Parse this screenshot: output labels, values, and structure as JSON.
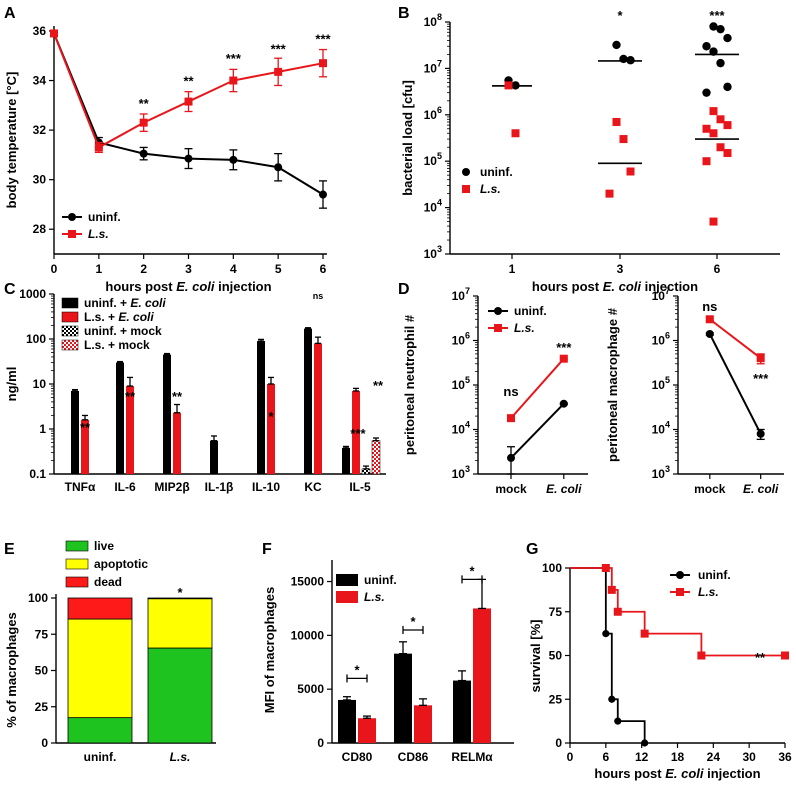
{
  "colors": {
    "uninf": "#000000",
    "ls": "#e8161b",
    "live": "#1fc31f",
    "apoptotic": "#ffff00",
    "dead": "#ff1a1a"
  },
  "chart_data": [
    {
      "panel": "A",
      "type": "line",
      "xlabel_pre": "hours post ",
      "xlabel_italic": "E. coli",
      "xlabel_post": " injection",
      "ylabel": "body temperature [°C]",
      "xlim": [
        0,
        6
      ],
      "ylim": [
        27,
        36.2
      ],
      "xticks": [
        "0",
        "1",
        "2",
        "3",
        "4",
        "5",
        "6"
      ],
      "yticks": [
        28,
        30,
        32,
        34,
        36
      ],
      "x": [
        0,
        1,
        2,
        3,
        4,
        5,
        6
      ],
      "series": [
        {
          "name": "uninf.",
          "key": "uninf",
          "values": [
            35.9,
            31.5,
            31.05,
            30.85,
            30.8,
            30.5,
            29.4
          ],
          "errors": [
            0,
            0.2,
            0.25,
            0.4,
            0.4,
            0.55,
            0.55
          ]
        },
        {
          "name": "L.s.",
          "key": "ls",
          "italic": true,
          "values": [
            35.9,
            31.3,
            32.3,
            33.15,
            34.0,
            34.35,
            34.7
          ],
          "errors": [
            0,
            0.2,
            0.35,
            0.4,
            0.45,
            0.55,
            0.55
          ]
        }
      ],
      "annotations": [
        {
          "x": 2,
          "y": 32.9,
          "text": "**"
        },
        {
          "x": 3,
          "y": 33.8,
          "text": "**"
        },
        {
          "x": 4,
          "y": 34.7,
          "text": "***"
        },
        {
          "x": 5,
          "y": 35.1,
          "text": "***"
        },
        {
          "x": 6,
          "y": 35.5,
          "text": "***"
        }
      ],
      "legend": "bottom-left"
    },
    {
      "panel": "B",
      "type": "scatter",
      "xlabel_pre": "hours post ",
      "xlabel_italic": "E. coli",
      "xlabel_post": " injection",
      "ylabel": "bacterial load [cfu]",
      "log": true,
      "ylim_exp": [
        3,
        8
      ],
      "ytick_exps": [
        3,
        4,
        5,
        6,
        7,
        8
      ],
      "categories": [
        "1",
        "3",
        "6"
      ],
      "series": [
        {
          "name": "uninf.",
          "key": "uninf",
          "points": [
            [
              0,
              5500000.0
            ],
            [
              0,
              4300000.0
            ],
            [
              1,
              32000000.0
            ],
            [
              1,
              16000000.0
            ],
            [
              1,
              15000000.0
            ],
            [
              2,
              80000000.0
            ],
            [
              2,
              70000000.0
            ],
            [
              2,
              45000000.0
            ],
            [
              2,
              30000000.0
            ],
            [
              2,
              23000000.0
            ],
            [
              2,
              13000000.0
            ],
            [
              2,
              4000000.0
            ],
            [
              2,
              3000000.0
            ]
          ]
        },
        {
          "name": "L.s.",
          "key": "ls",
          "italic": true,
          "points": [
            [
              0,
              4300000.0
            ],
            [
              0,
              400000.0
            ],
            [
              1,
              700000.0
            ],
            [
              1,
              300000.0
            ],
            [
              1,
              60000.0
            ],
            [
              1,
              20000.0
            ],
            [
              2,
              1200000.0
            ],
            [
              2,
              800000.0
            ],
            [
              2,
              600000.0
            ],
            [
              2,
              500000.0
            ],
            [
              2,
              400000.0
            ],
            [
              2,
              200000.0
            ],
            [
              2,
              150000.0
            ],
            [
              2,
              100000.0
            ],
            [
              2,
              5000.0
            ]
          ]
        }
      ],
      "lines": [
        {
          "cat": 0,
          "value": 4200000.0
        },
        {
          "cat": 0,
          "value": 4200000.0
        },
        {
          "cat": 1,
          "value": 14500000.0
        },
        {
          "cat": 1,
          "value": 90000.0
        },
        {
          "cat": 2,
          "value": 20000000.0
        },
        {
          "cat": 2,
          "value": 300000.0
        }
      ],
      "annotations": [
        {
          "cat": 1,
          "text": "*"
        },
        {
          "cat": 2,
          "text": "***"
        }
      ],
      "legend": "bottom-left"
    },
    {
      "panel": "C",
      "type": "bar",
      "ylabel": "ng/ml",
      "log": true,
      "ylim_exp": [
        -1,
        3
      ],
      "yticks": [
        "0.1",
        "1",
        "10",
        "100",
        "1000"
      ],
      "categories": [
        "TNFα",
        "IL-6",
        "MIP2β",
        "IL-1β",
        "IL-10",
        "KC",
        "IL-5"
      ],
      "series": [
        {
          "name": "uninf. + ",
          "italic_suffix": "E. coli",
          "key": "uninf",
          "values": [
            7,
            30,
            45,
            0.55,
            90,
            170,
            0.38
          ],
          "errors": [
            0.5,
            1.5,
            2.5,
            0.15,
            8,
            8,
            0.03
          ]
        },
        {
          "name": "L.s.",
          "name_suffix": " + ",
          "italic_suffix": "E. coli",
          "key": "ls",
          "values": [
            1.6,
            9,
            2.3,
            null,
            10,
            80,
            7
          ],
          "errors": [
            0.4,
            5,
            1.2,
            null,
            4,
            30,
            1
          ]
        },
        {
          "name": "uninf. + mock",
          "key": "uninf_mock",
          "pattern": true,
          "values": [
            null,
            null,
            null,
            null,
            null,
            null,
            0.13
          ],
          "errors": [
            null,
            null,
            null,
            null,
            null,
            null,
            0.02
          ]
        },
        {
          "name": "L.s.",
          "name_suffix": " + mock",
          "key": "ls_mock",
          "pattern": true,
          "values": [
            null,
            null,
            null,
            null,
            null,
            null,
            0.55
          ],
          "errors": [
            null,
            null,
            null,
            null,
            null,
            null,
            0.08
          ]
        }
      ],
      "annotations": [
        {
          "cat": 0,
          "text": "**"
        },
        {
          "cat": 1,
          "text": "**"
        },
        {
          "cat": 2,
          "text": "**"
        },
        {
          "cat": 4,
          "text": "*"
        },
        {
          "cat": 5,
          "text": "ns",
          "small": true
        },
        {
          "cat": 6,
          "text": "***",
          "sub": "mock"
        },
        {
          "cat": 6,
          "text": "**"
        }
      ],
      "legend": "top-left"
    },
    {
      "panel": "D1",
      "type": "line",
      "ylabel": "peritoneal neutrophil #",
      "log": true,
      "ylim_exp": [
        3,
        7
      ],
      "categories": [
        "mock",
        "E. coli"
      ],
      "series": [
        {
          "name": "uninf.",
          "key": "uninf",
          "values": [
            2300.0,
            38000.0
          ],
          "errors": [
            1800.0,
            1500.0
          ]
        },
        {
          "name": "L.s.",
          "key": "ls",
          "italic": true,
          "values": [
            18000.0,
            390000.0
          ],
          "errors": [
            1000.0,
            20000.0
          ]
        }
      ],
      "annotations": [
        {
          "cat": 0,
          "text": "ns"
        },
        {
          "cat": 1,
          "text": "***"
        }
      ],
      "legend": "top-left"
    },
    {
      "panel": "D2",
      "type": "line",
      "ylabel": "peritoneal macrophage #",
      "log": true,
      "ylim_exp": [
        3,
        7
      ],
      "categories": [
        "mock",
        "E. coli"
      ],
      "series": [
        {
          "name": "uninf.",
          "key": "uninf",
          "values": [
            1400000.0,
            8000.0
          ],
          "errors": [
            80000.0,
            2000.0
          ]
        },
        {
          "name": "L.s.",
          "key": "ls",
          "italic": true,
          "values": [
            3000000.0,
            400000.0
          ],
          "errors": [
            200000.0,
            100000.0
          ]
        }
      ],
      "annotations": [
        {
          "cat": 0,
          "text": "ns"
        },
        {
          "cat": 1,
          "text": "***"
        }
      ]
    },
    {
      "panel": "E",
      "type": "bar",
      "stacked": true,
      "ylabel": "% of macrophages",
      "ylim": [
        0,
        100
      ],
      "yticks": [
        0,
        25,
        50,
        75,
        100
      ],
      "categories": [
        "uninf.",
        "L.s."
      ],
      "series": [
        {
          "name": "live",
          "key": "live",
          "values": [
            17.5,
            65.5
          ]
        },
        {
          "name": "apoptotic",
          "key": "apoptotic",
          "values": [
            68,
            34
          ]
        },
        {
          "name": "dead",
          "key": "dead",
          "values": [
            14.5,
            0.5
          ]
        }
      ],
      "annotations": [
        {
          "cat": 1,
          "text": "*"
        }
      ],
      "legend": "top"
    },
    {
      "panel": "F",
      "type": "bar",
      "ylabel": "MFI of macrophages",
      "ylim": [
        0,
        17000
      ],
      "yticks": [
        0,
        5000,
        10000,
        15000
      ],
      "categories": [
        "CD80",
        "CD86",
        "RELMα"
      ],
      "series": [
        {
          "name": "uninf.",
          "key": "uninf",
          "values": [
            4000,
            8300,
            5800
          ],
          "errors": [
            300,
            1100,
            900
          ]
        },
        {
          "name": "L.s.",
          "key": "ls",
          "italic": true,
          "values": [
            2300,
            3500,
            12500
          ],
          "errors": [
            200,
            600,
            2700
          ]
        }
      ],
      "annotations": [
        {
          "cat": 0,
          "text": "*",
          "y": 6000
        },
        {
          "cat": 1,
          "text": "*",
          "y": 10500
        },
        {
          "cat": 2,
          "text": "*",
          "y": 15200
        }
      ],
      "legend": "top-left"
    },
    {
      "panel": "G",
      "type": "line",
      "step": true,
      "xlabel_pre": "hours post ",
      "xlabel_italic": "E. coli",
      "xlabel_post": " injection",
      "ylabel": "survival [%]",
      "xlim": [
        0,
        36
      ],
      "ylim": [
        0,
        100
      ],
      "xticks": [
        0,
        6,
        12,
        18,
        24,
        30,
        36
      ],
      "yticks": [
        0,
        25,
        50,
        75,
        100
      ],
      "series": [
        {
          "name": "uninf.",
          "key": "uninf",
          "steps": [
            [
              0,
              100
            ],
            [
              6,
              100
            ],
            [
              6,
              62.5
            ],
            [
              7,
              62.5
            ],
            [
              7,
              25
            ],
            [
              8,
              25
            ],
            [
              8,
              12.5
            ],
            [
              12.5,
              12.5
            ],
            [
              12.5,
              0
            ]
          ],
          "markers": [
            [
              6,
              62.5
            ],
            [
              7,
              25
            ],
            [
              8,
              12.5
            ],
            [
              12.5,
              0
            ]
          ]
        },
        {
          "name": "L.s.",
          "key": "ls",
          "italic": true,
          "steps": [
            [
              0,
              100
            ],
            [
              6,
              100
            ],
            [
              7,
              100
            ],
            [
              7,
              87.5
            ],
            [
              8,
              87.5
            ],
            [
              8,
              75
            ],
            [
              12.5,
              75
            ],
            [
              12.5,
              62.5
            ],
            [
              22,
              62.5
            ],
            [
              22,
              50
            ],
            [
              36,
              50
            ]
          ],
          "markers": [
            [
              6,
              100
            ],
            [
              7,
              87.5
            ],
            [
              8,
              75
            ],
            [
              12.5,
              62.5
            ],
            [
              22,
              50
            ],
            [
              36,
              50
            ]
          ]
        }
      ],
      "annotations": [
        {
          "text": "**"
        }
      ],
      "legend": "top-right"
    }
  ]
}
